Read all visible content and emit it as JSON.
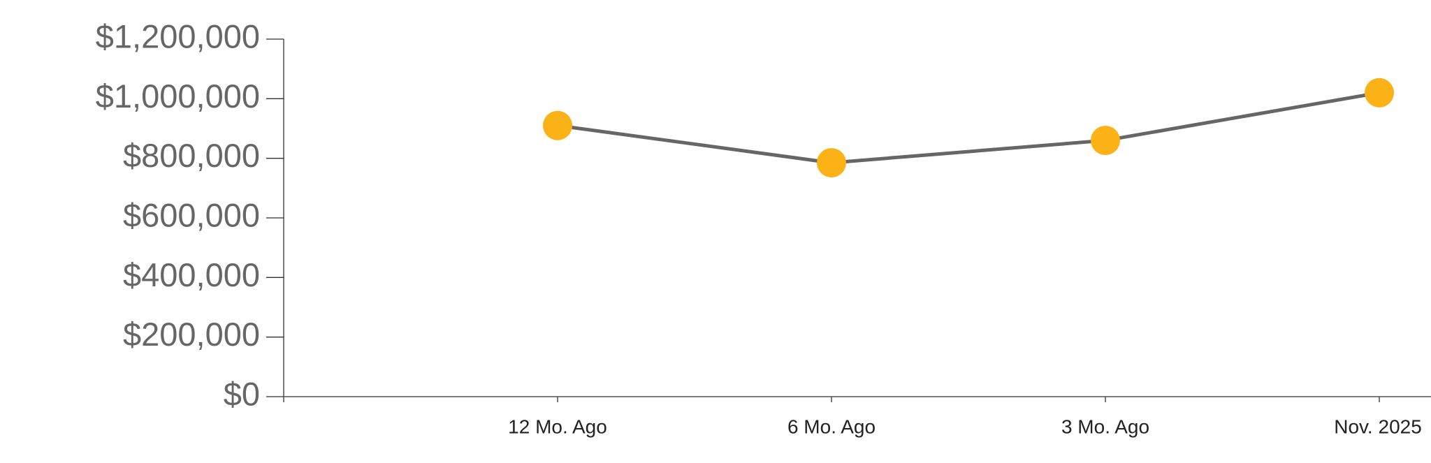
{
  "chart_data": {
    "type": "line",
    "categories": [
      null,
      "12 Mo. Ago",
      "6 Mo. Ago",
      "3 Mo. Ago",
      "Nov. 2025"
    ],
    "series": [
      {
        "color": "#666666",
        "marker_color": "#fbb217",
        "values": [
          null,
          910000,
          785000,
          860000,
          1020000
        ]
      }
    ],
    "ylim": [
      0,
      1200000
    ],
    "yticks": [
      {
        "value": 0,
        "label": "$0"
      },
      {
        "value": 200000,
        "label": "$200,000"
      },
      {
        "value": 400000,
        "label": "$400,000"
      },
      {
        "value": 600000,
        "label": "$600,000"
      },
      {
        "value": 800000,
        "label": "$800,000"
      },
      {
        "value": 1000000,
        "label": "$1,000,000"
      },
      {
        "value": 1200000,
        "label": "$1,200,000"
      }
    ],
    "grid": false
  }
}
